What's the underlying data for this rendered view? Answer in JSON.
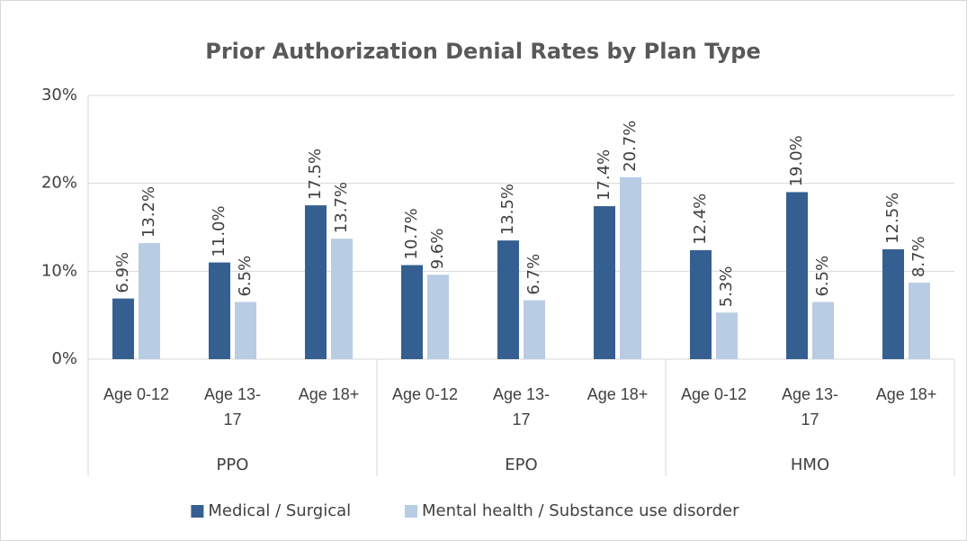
{
  "chart_data": {
    "type": "bar",
    "title": "Prior Authorization Denial Rates by Plan Type",
    "categories": [
      "Age 0-12",
      "Age 13-17",
      "Age 18+",
      "Age 0-12",
      "Age 13-17",
      "Age 18+",
      "Age 0-12",
      "Age 13-17",
      "Age 18+"
    ],
    "groups": [
      "PPO",
      "EPO",
      "HMO"
    ],
    "series": [
      {
        "name": "Medical / Surgical",
        "color": "#355f91",
        "values": [
          6.9,
          11.0,
          17.5,
          10.7,
          13.5,
          17.4,
          12.4,
          19.0,
          12.5
        ],
        "value_labels": [
          "6.9%",
          "11.0%",
          "17.5%",
          "10.7%",
          "13.5%",
          "17.4%",
          "12.4%",
          "19.0%",
          "12.5%"
        ]
      },
      {
        "name": "Mental health / Substance use disorder",
        "color": "#b8cce4",
        "values": [
          13.2,
          6.5,
          13.7,
          9.6,
          6.7,
          20.7,
          5.3,
          6.5,
          8.7
        ],
        "value_labels": [
          "13.2%",
          "6.5%",
          "13.7%",
          "9.6%",
          "6.7%",
          "20.7%",
          "5.3%",
          "6.5%",
          "8.7%"
        ]
      }
    ],
    "ylim": [
      0,
      30
    ],
    "yticks": [
      {
        "value": 0,
        "label": "0%"
      },
      {
        "value": 10,
        "label": "10%"
      },
      {
        "value": 20,
        "label": "20%"
      },
      {
        "value": 30,
        "label": "30%"
      }
    ],
    "grid": true,
    "legend": "bottom"
  }
}
